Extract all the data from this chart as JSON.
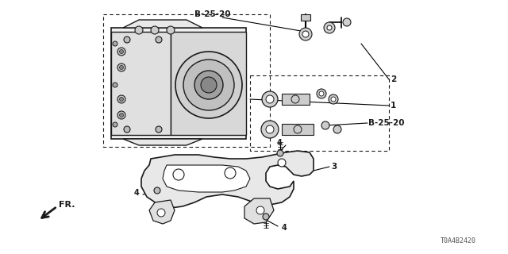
{
  "bg_color": "#ffffff",
  "part_code": "T0A4B2420",
  "line_color": "#1a1a1a",
  "label_B2520_top": "B-25-20",
  "label_B2520_right": "B-25-20",
  "label_1": "1",
  "label_2": "2",
  "label_3": "3",
  "label_4": "4",
  "label_fr": "FR.",
  "fig_w": 6.4,
  "fig_h": 3.2,
  "dpi": 100
}
